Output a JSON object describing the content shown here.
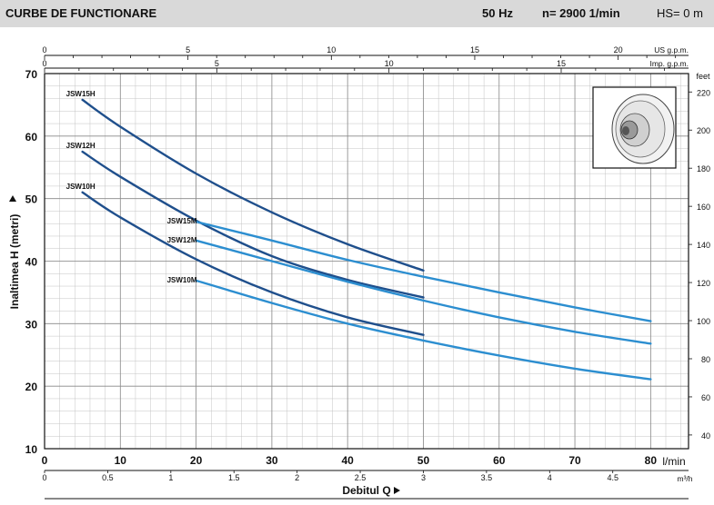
{
  "header": {
    "title": "CURBE DE FUNCTIONARE",
    "frequency": "50 Hz",
    "speed": "n= 2900  1/min",
    "suction_height": "HS= 0 m"
  },
  "chart_data": {
    "type": "line",
    "xlabel": "Debitul  Q",
    "ylabel": "Inaltimea  H  (metri)",
    "x_unit": "l/min",
    "x_range": [
      0,
      80
    ],
    "y_range": [
      10,
      70
    ],
    "x_ticks": [
      "0",
      "10",
      "20",
      "30",
      "40",
      "50",
      "60",
      "70",
      "80"
    ],
    "y_ticks": [
      "10",
      "20",
      "30",
      "40",
      "50",
      "60",
      "70"
    ],
    "secondary_axes": {
      "usgpm": {
        "unit": "US g.p.m.",
        "ticks": [
          "0",
          "5",
          "10",
          "15",
          "20"
        ]
      },
      "impgpm": {
        "unit": "Imp. g.p.m.",
        "ticks": [
          "0",
          "5",
          "10",
          "15"
        ]
      },
      "m3h": {
        "unit": "m³/h",
        "ticks": [
          "0",
          "0.5",
          "1",
          "1.5",
          "2",
          "2.5",
          "3",
          "3.5",
          "4",
          "4.5"
        ]
      },
      "feet": {
        "unit": "feet",
        "ticks": [
          "40",
          "60",
          "80",
          "100",
          "120",
          "140",
          "160",
          "180",
          "200",
          "220"
        ]
      }
    },
    "grid": true,
    "legend": "inline labels",
    "series": [
      {
        "name": "JSW15H",
        "x": [
          5,
          10,
          20,
          30,
          40,
          50
        ],
        "y": [
          65.8,
          61.5,
          54.0,
          47.8,
          42.7,
          38.5
        ]
      },
      {
        "name": "JSW12H",
        "x": [
          5,
          10,
          20,
          30,
          40,
          50
        ],
        "y": [
          57.5,
          53.5,
          46.5,
          40.8,
          37.0,
          34.2
        ]
      },
      {
        "name": "JSW10H",
        "x": [
          5,
          10,
          20,
          30,
          40,
          50
        ],
        "y": [
          51.0,
          47.0,
          40.3,
          35.0,
          31.0,
          28.2
        ]
      },
      {
        "name": "JSW15M",
        "x": [
          20,
          30,
          40,
          50,
          60,
          70,
          80
        ],
        "y": [
          46.3,
          43.3,
          40.2,
          37.5,
          35.0,
          32.6,
          30.4
        ]
      },
      {
        "name": "JSW12M",
        "x": [
          20,
          30,
          40,
          50,
          60,
          70,
          80
        ],
        "y": [
          43.3,
          40.0,
          36.7,
          33.7,
          31.0,
          28.7,
          26.8
        ]
      },
      {
        "name": "JSW10M",
        "x": [
          20,
          30,
          40,
          50,
          60,
          70,
          80
        ],
        "y": [
          36.9,
          33.3,
          30.0,
          27.3,
          24.9,
          22.8,
          21.1
        ]
      }
    ],
    "colors": {
      "H": "#1f4f8c",
      "M": "#2c8ed0"
    }
  }
}
